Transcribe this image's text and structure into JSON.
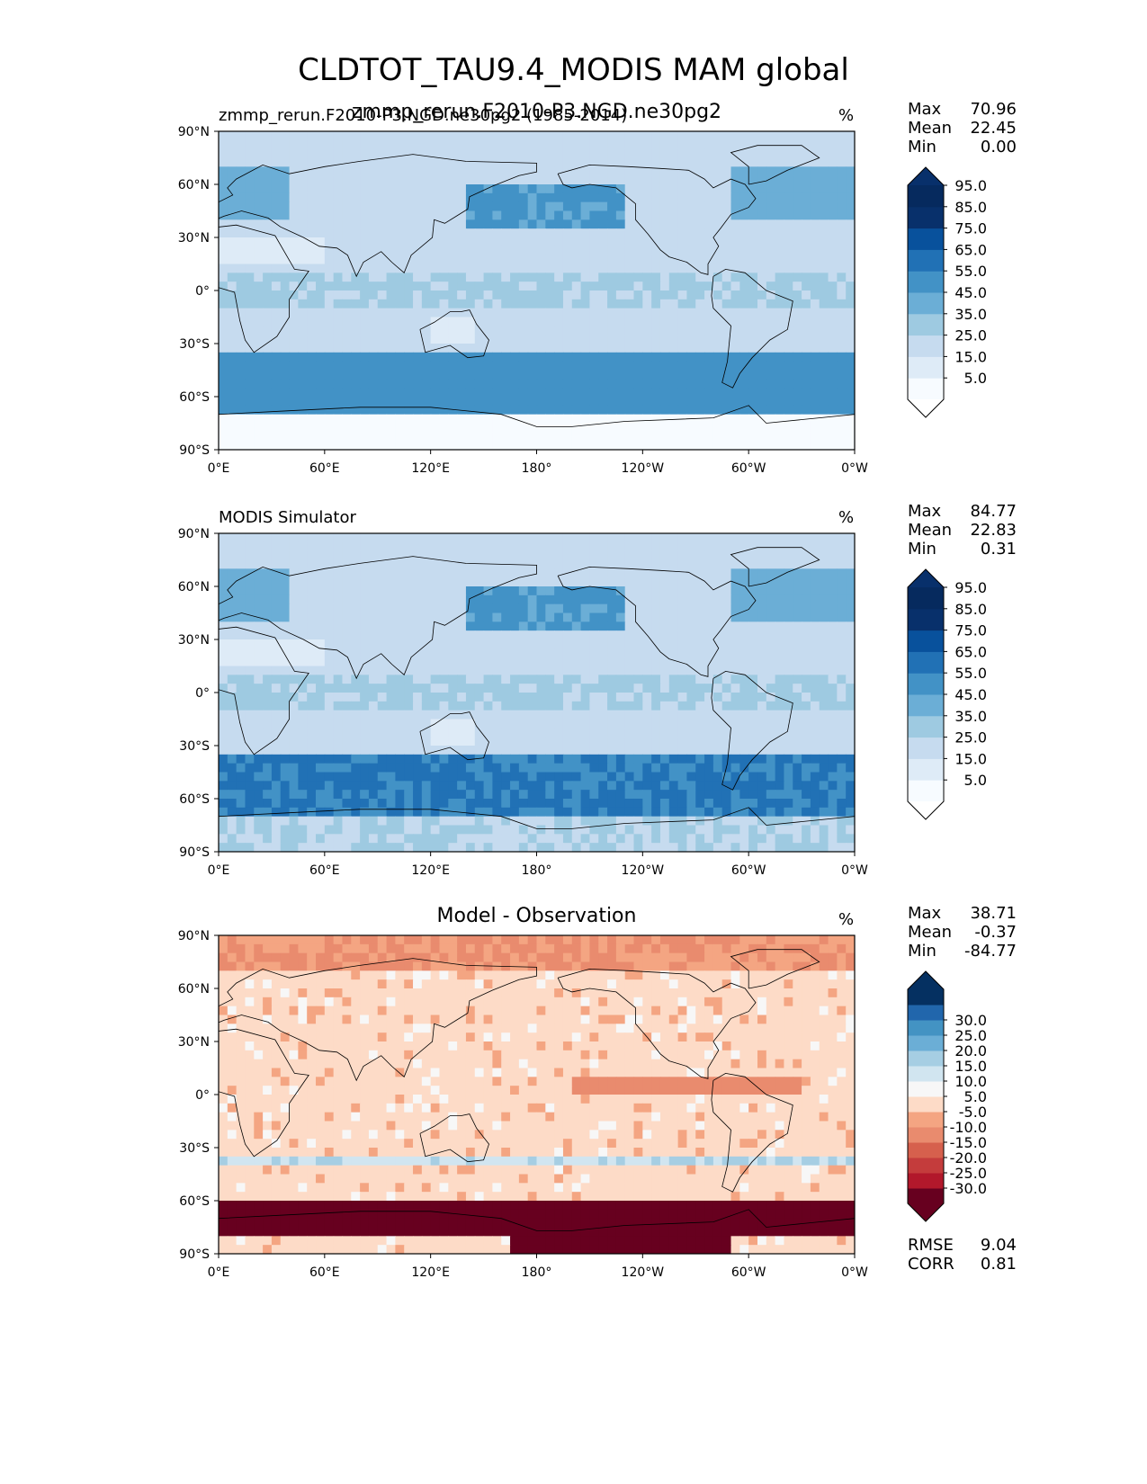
{
  "title": "CLDTOT_TAU9.4_MODIS MAM global",
  "chart_data": [
    {
      "type": "heatmap",
      "left_title": "zmmp_rerun.F2010-P3.NGD.ne30pg2 (1985-2014)",
      "center_title": "zmmp_rerun.F2010-P3.NGD.ne30pg2",
      "units": "%",
      "stats": {
        "Max": "70.96",
        "Mean": "22.45",
        "Min": "0.00"
      },
      "colorbar": {
        "levels": [
          "5.0",
          "15.0",
          "25.0",
          "35.0",
          "45.0",
          "55.0",
          "65.0",
          "75.0",
          "85.0",
          "95.0"
        ],
        "colors": [
          "#f7fbff",
          "#deebf7",
          "#c6dbef",
          "#9ecae1",
          "#6baed6",
          "#4292c6",
          "#2171b5",
          "#08519c",
          "#08306b",
          "#062a5e"
        ],
        "under_color": "#ffffff",
        "over_color": "#08306b"
      },
      "xticks": [
        "0°E",
        "60°E",
        "120°E",
        "180°",
        "120°W",
        "60°W",
        "0°W"
      ],
      "yticks": [
        "90°N",
        "60°N",
        "30°N",
        "0°",
        "30°S",
        "60°S",
        "90°S"
      ]
    },
    {
      "type": "heatmap",
      "left_title": "MODIS Simulator",
      "center_title": "",
      "units": "%",
      "stats": {
        "Max": "84.77",
        "Mean": "22.83",
        "Min": "0.31"
      },
      "colorbar": {
        "levels": [
          "5.0",
          "15.0",
          "25.0",
          "35.0",
          "45.0",
          "55.0",
          "65.0",
          "75.0",
          "85.0",
          "95.0"
        ],
        "colors": [
          "#f7fbff",
          "#deebf7",
          "#c6dbef",
          "#9ecae1",
          "#6baed6",
          "#4292c6",
          "#2171b5",
          "#08519c",
          "#08306b",
          "#062a5e"
        ],
        "under_color": "#ffffff",
        "over_color": "#08306b"
      },
      "xticks": [
        "0°E",
        "60°E",
        "120°E",
        "180°",
        "120°W",
        "60°W",
        "0°W"
      ],
      "yticks": [
        "90°N",
        "60°N",
        "30°N",
        "0°",
        "30°S",
        "60°S",
        "90°S"
      ]
    },
    {
      "type": "heatmap",
      "left_title": "",
      "center_title": "Model - Observation",
      "units": "%",
      "stats": {
        "Max": "38.71",
        "Mean": "-0.37",
        "Min": "-84.77"
      },
      "metrics": {
        "RMSE": "9.04",
        "CORR": "0.81"
      },
      "colorbar": {
        "levels": [
          "-30.0",
          "-25.0",
          "-20.0",
          "-15.0",
          "-10.0",
          "-5.0",
          "5.0",
          "10.0",
          "15.0",
          "20.0",
          "25.0",
          "30.0"
        ],
        "colors": [
          "#67001f",
          "#b2182b",
          "#c43c3c",
          "#d6604d",
          "#e98b6e",
          "#f4a582",
          "#fddbc7",
          "#f7f7f7",
          "#d1e5f0",
          "#a6cee3",
          "#6baed6",
          "#4393c3",
          "#2166ac",
          "#053061"
        ],
        "under_color": "#67001f",
        "over_color": "#053061"
      },
      "xticks": [
        "0°E",
        "60°E",
        "120°E",
        "180°",
        "120°W",
        "60°W",
        "0°W"
      ],
      "yticks": [
        "90°N",
        "60°N",
        "30°N",
        "0°",
        "30°S",
        "60°S",
        "90°S"
      ]
    }
  ]
}
